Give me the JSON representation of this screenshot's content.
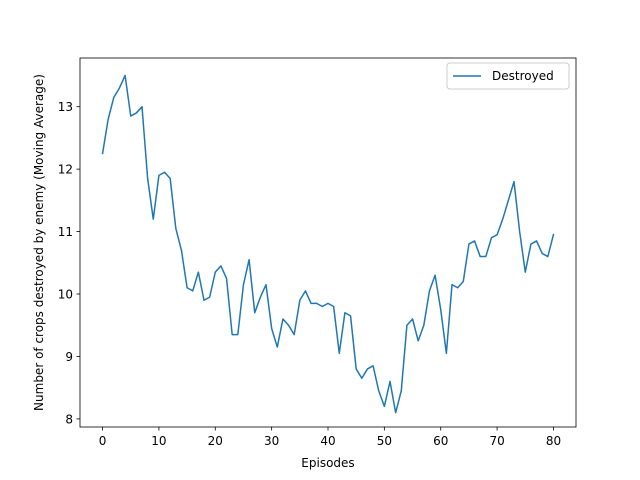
{
  "chart_data": {
    "type": "line",
    "title": "",
    "xlabel": "Episodes",
    "ylabel": "Number of crops destroyed by enemy (Moving Average)",
    "xlim": [
      -4,
      84
    ],
    "ylim": [
      7.87,
      13.78
    ],
    "xticks": [
      "0",
      "10",
      "20",
      "30",
      "40",
      "50",
      "60",
      "70",
      "80"
    ],
    "yticks": [
      "8",
      "9",
      "10",
      "11",
      "12",
      "13"
    ],
    "grid": false,
    "legend_position": "top-right",
    "colors": {
      "series": "#1f77b4",
      "axes": "#000000",
      "legend_border": "#cccccc"
    },
    "series": [
      {
        "name": "Destroyed",
        "x": [
          0,
          1,
          2,
          3,
          4,
          5,
          6,
          7,
          8,
          9,
          10,
          11,
          12,
          13,
          14,
          15,
          16,
          17,
          18,
          19,
          20,
          21,
          22,
          23,
          24,
          25,
          26,
          27,
          28,
          29,
          30,
          31,
          32,
          33,
          34,
          35,
          36,
          37,
          38,
          39,
          40,
          41,
          42,
          43,
          44,
          45,
          46,
          47,
          48,
          49,
          50,
          51,
          52,
          53,
          54,
          55,
          56,
          57,
          58,
          59,
          60,
          61,
          62,
          63,
          64,
          65,
          66,
          67,
          68,
          69,
          70,
          71,
          72,
          73,
          74,
          75,
          76,
          77,
          78,
          79,
          80
        ],
        "values": [
          12.25,
          12.8,
          13.15,
          13.3,
          13.5,
          12.85,
          12.9,
          13.0,
          11.85,
          11.2,
          11.9,
          11.95,
          11.85,
          11.05,
          10.7,
          10.1,
          10.05,
          10.35,
          9.9,
          9.95,
          10.35,
          10.45,
          10.25,
          9.35,
          9.35,
          10.15,
          10.55,
          9.7,
          9.95,
          10.15,
          9.45,
          9.15,
          9.6,
          9.5,
          9.35,
          9.9,
          10.05,
          9.85,
          9.85,
          9.8,
          9.85,
          9.8,
          9.05,
          9.7,
          9.65,
          8.8,
          8.65,
          8.8,
          8.85,
          8.45,
          8.2,
          8.6,
          8.1,
          8.45,
          9.5,
          9.6,
          9.25,
          9.5,
          10.05,
          10.3,
          9.75,
          9.05,
          10.15,
          10.1,
          10.2,
          10.8,
          10.85,
          10.6,
          10.6,
          10.9,
          10.95,
          11.2,
          11.5,
          11.8,
          11.0,
          10.35,
          10.8,
          10.85,
          10.65,
          10.6,
          10.95
        ]
      }
    ]
  }
}
